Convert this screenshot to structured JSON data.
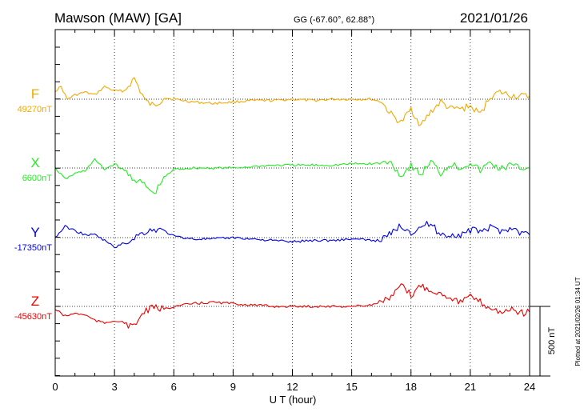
{
  "header": {
    "station": "Mawson (MAW)  [GA]",
    "coords": "GG (-67.60°,  62.88°)",
    "date": "2021/01/26"
  },
  "plotted_note": "Plotted at 2021/02/26 01:34 UT",
  "chart_data": {
    "type": "line",
    "xlabel": "U T (hour)",
    "xlim": [
      0,
      24
    ],
    "xticks": [
      "0",
      "3",
      "6",
      "9",
      "12",
      "15",
      "18",
      "21",
      "24"
    ],
    "scale_bar": {
      "label": "500 nT",
      "value_nT": 500
    },
    "series": [
      {
        "name": "F",
        "baseline_label": "49270nT",
        "baseline_nT": 49270,
        "color": "#f5a800",
        "points": [
          [
            0,
            49330
          ],
          [
            0.3,
            49360
          ],
          [
            0.6,
            49270
          ],
          [
            1,
            49300
          ],
          [
            1.5,
            49320
          ],
          [
            2,
            49300
          ],
          [
            2.5,
            49360
          ],
          [
            3,
            49330
          ],
          [
            3.5,
            49330
          ],
          [
            4,
            49420
          ],
          [
            4.3,
            49330
          ],
          [
            4.6,
            49250
          ],
          [
            5,
            49220
          ],
          [
            5.5,
            49280
          ],
          [
            6,
            49270
          ],
          [
            7,
            49250
          ],
          [
            8,
            49240
          ],
          [
            9,
            49250
          ],
          [
            10,
            49260
          ],
          [
            11,
            49260
          ],
          [
            12,
            49270
          ],
          [
            13,
            49260
          ],
          [
            14,
            49270
          ],
          [
            15,
            49270
          ],
          [
            16,
            49270
          ],
          [
            16.5,
            49250
          ],
          [
            17,
            49160
          ],
          [
            17.5,
            49100
          ],
          [
            18,
            49200
          ],
          [
            18.5,
            49080
          ],
          [
            19,
            49180
          ],
          [
            19.5,
            49250
          ],
          [
            20,
            49200
          ],
          [
            20.5,
            49200
          ],
          [
            21,
            49220
          ],
          [
            21.5,
            49160
          ],
          [
            22,
            49290
          ],
          [
            22.5,
            49320
          ],
          [
            23,
            49300
          ],
          [
            23.5,
            49290
          ],
          [
            24,
            49290
          ]
        ]
      },
      {
        "name": "X",
        "baseline_label": "6600nT",
        "baseline_nT": 6600,
        "color": "#22ee22",
        "points": [
          [
            0,
            6600
          ],
          [
            0.5,
            6520
          ],
          [
            1,
            6560
          ],
          [
            1.5,
            6580
          ],
          [
            2,
            6660
          ],
          [
            2.5,
            6590
          ],
          [
            3,
            6630
          ],
          [
            3.5,
            6580
          ],
          [
            4,
            6520
          ],
          [
            4.5,
            6480
          ],
          [
            5,
            6410
          ],
          [
            5.5,
            6530
          ],
          [
            6,
            6590
          ],
          [
            7,
            6600
          ],
          [
            8,
            6600
          ],
          [
            9,
            6600
          ],
          [
            10,
            6610
          ],
          [
            11,
            6620
          ],
          [
            12,
            6620
          ],
          [
            13,
            6620
          ],
          [
            14,
            6620
          ],
          [
            15,
            6630
          ],
          [
            16,
            6630
          ],
          [
            17,
            6640
          ],
          [
            17.5,
            6540
          ],
          [
            18,
            6620
          ],
          [
            18.5,
            6550
          ],
          [
            19,
            6650
          ],
          [
            19.5,
            6560
          ],
          [
            20,
            6630
          ],
          [
            20.5,
            6600
          ],
          [
            21,
            6640
          ],
          [
            21.5,
            6580
          ],
          [
            22,
            6640
          ],
          [
            22.5,
            6590
          ],
          [
            23,
            6620
          ],
          [
            23.5,
            6600
          ],
          [
            24,
            6600
          ]
        ]
      },
      {
        "name": "Y",
        "baseline_label": "-17350nT",
        "baseline_nT": -17350,
        "color": "#0000ee",
        "points": [
          [
            0,
            -17350
          ],
          [
            0.5,
            -17270
          ],
          [
            1,
            -17300
          ],
          [
            1.5,
            -17330
          ],
          [
            2,
            -17330
          ],
          [
            2.5,
            -17370
          ],
          [
            3,
            -17420
          ],
          [
            3.5,
            -17390
          ],
          [
            4,
            -17350
          ],
          [
            4.5,
            -17310
          ],
          [
            5,
            -17290
          ],
          [
            5.5,
            -17300
          ],
          [
            6,
            -17340
          ],
          [
            7,
            -17360
          ],
          [
            8,
            -17360
          ],
          [
            9,
            -17350
          ],
          [
            10,
            -17360
          ],
          [
            11,
            -17370
          ],
          [
            12,
            -17380
          ],
          [
            13,
            -17370
          ],
          [
            14,
            -17370
          ],
          [
            15,
            -17360
          ],
          [
            16,
            -17370
          ],
          [
            16.5,
            -17370
          ],
          [
            17,
            -17320
          ],
          [
            17.5,
            -17260
          ],
          [
            18,
            -17310
          ],
          [
            18.5,
            -17270
          ],
          [
            19,
            -17250
          ],
          [
            19.5,
            -17330
          ],
          [
            20,
            -17330
          ],
          [
            20.5,
            -17330
          ],
          [
            21,
            -17300
          ],
          [
            21.5,
            -17300
          ],
          [
            22,
            -17280
          ],
          [
            22.5,
            -17300
          ],
          [
            23,
            -17280
          ],
          [
            23.5,
            -17310
          ],
          [
            24,
            -17330
          ]
        ]
      },
      {
        "name": "Z",
        "baseline_label": "-45630nT",
        "baseline_nT": -45630,
        "color": "#ee0000",
        "points": [
          [
            0,
            -45650
          ],
          [
            0.5,
            -45700
          ],
          [
            1,
            -45680
          ],
          [
            1.5,
            -45690
          ],
          [
            2,
            -45730
          ],
          [
            2.5,
            -45750
          ],
          [
            3,
            -45730
          ],
          [
            3.5,
            -45750
          ],
          [
            4,
            -45780
          ],
          [
            4.3,
            -45700
          ],
          [
            4.6,
            -45660
          ],
          [
            5,
            -45640
          ],
          [
            5.5,
            -45650
          ],
          [
            6,
            -45630
          ],
          [
            7,
            -45610
          ],
          [
            8,
            -45600
          ],
          [
            9,
            -45610
          ],
          [
            10,
            -45620
          ],
          [
            11,
            -45630
          ],
          [
            12,
            -45630
          ],
          [
            13,
            -45630
          ],
          [
            14,
            -45630
          ],
          [
            15,
            -45630
          ],
          [
            16,
            -45620
          ],
          [
            16.5,
            -45590
          ],
          [
            17,
            -45570
          ],
          [
            17.5,
            -45480
          ],
          [
            18,
            -45550
          ],
          [
            18.5,
            -45480
          ],
          [
            19,
            -45510
          ],
          [
            19.5,
            -45540
          ],
          [
            20,
            -45560
          ],
          [
            20.5,
            -45600
          ],
          [
            21,
            -45560
          ],
          [
            21.5,
            -45600
          ],
          [
            22,
            -45640
          ],
          [
            22.5,
            -45670
          ],
          [
            23,
            -45650
          ],
          [
            23.5,
            -45680
          ],
          [
            24,
            -45670
          ]
        ]
      }
    ]
  }
}
